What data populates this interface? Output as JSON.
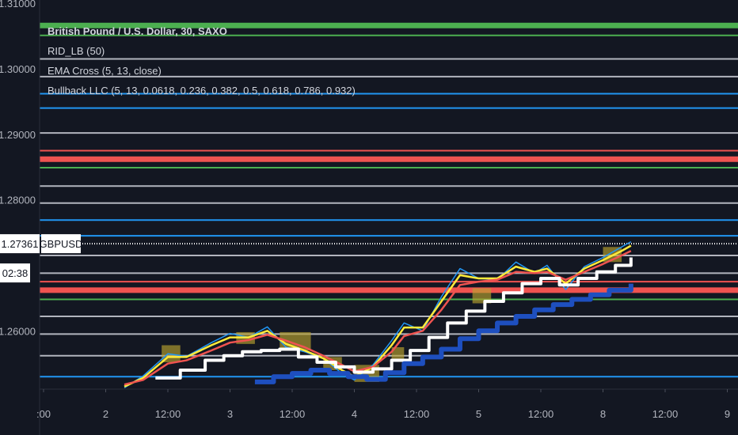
{
  "chart_data": {
    "type": "line",
    "symbol_label": "GBPUSD",
    "price_label": "1.27361",
    "countdown_label": "02:38",
    "legend": [
      "British Pound / U.S. Dollar, 30, SAXO",
      "RID_LB (50)",
      "EMA Cross (5, 13, close)",
      "Bullback LLC (5, 13, 0.0618, 0.236, 0.382, 0.5, 0.618, 0.786, 0.932)"
    ],
    "ylim": [
      1.2511,
      1.3105
    ],
    "y_ticks": [
      {
        "value": 1.31,
        "label": "1.31000"
      },
      {
        "value": 1.3,
        "label": "1.30000"
      },
      {
        "value": 1.29,
        "label": "1.29000"
      },
      {
        "value": 1.28,
        "label": "1.28000"
      },
      {
        "value": 1.26,
        "label": "1.26000"
      }
    ],
    "x_ticks": [
      ":00",
      "2",
      "12:00",
      "3",
      "12:00",
      "4",
      "12:00",
      "5",
      "12:00",
      "8",
      "12:00",
      "9"
    ],
    "x_tick_fraction": [
      0.0,
      0.1,
      0.2,
      0.3,
      0.4,
      0.5,
      0.6,
      0.7,
      0.8,
      0.9,
      1.0,
      1.1
    ],
    "horizontal_levels": [
      {
        "value": 1.3066,
        "color": "#4caf50",
        "bold": true
      },
      {
        "value": 1.3051,
        "color": "#4caf50",
        "bold": false
      },
      {
        "value": 1.3015,
        "color": "#b2b5be",
        "bold": false
      },
      {
        "value": 1.2988,
        "color": "#b2b5be",
        "bold": false
      },
      {
        "value": 1.2962,
        "color": "#2196f3",
        "bold": false
      },
      {
        "value": 1.294,
        "color": "#2196f3",
        "bold": false
      },
      {
        "value": 1.2902,
        "color": "#b2b5be",
        "bold": false
      },
      {
        "value": 1.2875,
        "color": "#ef5350",
        "bold": false
      },
      {
        "value": 1.2862,
        "color": "#ef5350",
        "bold": true
      },
      {
        "value": 1.2849,
        "color": "#4caf50",
        "bold": false
      },
      {
        "value": 1.2821,
        "color": "#b2b5be",
        "bold": false
      },
      {
        "value": 1.2795,
        "color": "#b2b5be",
        "bold": false
      },
      {
        "value": 1.2769,
        "color": "#2196f3",
        "bold": false
      },
      {
        "value": 1.2745,
        "color": "#2196f3",
        "bold": false
      },
      {
        "value": 1.2733,
        "color": "#ffffff",
        "bold": false,
        "dotted": true
      },
      {
        "value": 1.2715,
        "color": "#b2b5be",
        "bold": false
      },
      {
        "value": 1.2688,
        "color": "#b2b5be",
        "bold": false
      },
      {
        "value": 1.2675,
        "color": "#ef5350",
        "bold": false
      },
      {
        "value": 1.2662,
        "color": "#ef5350",
        "bold": true
      },
      {
        "value": 1.2648,
        "color": "#4caf50",
        "bold": false
      },
      {
        "value": 1.2622,
        "color": "#b2b5be",
        "bold": false
      },
      {
        "value": 1.2595,
        "color": "#b2b5be",
        "bold": false
      },
      {
        "value": 1.2562,
        "color": "#b2b5be",
        "bold": false
      },
      {
        "value": 1.253,
        "color": "#2196f3",
        "bold": false
      }
    ],
    "series": [
      {
        "color": "#2196f3",
        "points": [
          [
            0.13,
            1.2513
          ],
          [
            0.16,
            1.2531
          ],
          [
            0.2,
            1.2565
          ],
          [
            0.23,
            1.2561
          ],
          [
            0.27,
            1.2582
          ],
          [
            0.3,
            1.2596
          ],
          [
            0.33,
            1.259
          ],
          [
            0.36,
            1.2606
          ],
          [
            0.39,
            1.2575
          ],
          [
            0.42,
            1.2568
          ],
          [
            0.45,
            1.2558
          ],
          [
            0.48,
            1.2535
          ],
          [
            0.5,
            1.2525
          ],
          [
            0.53,
            1.2548
          ],
          [
            0.56,
            1.2585
          ],
          [
            0.58,
            1.2612
          ],
          [
            0.61,
            1.26
          ],
          [
            0.64,
            1.2652
          ],
          [
            0.67,
            1.2695
          ],
          [
            0.7,
            1.268
          ],
          [
            0.73,
            1.2678
          ],
          [
            0.76,
            1.2705
          ],
          [
            0.79,
            1.2688
          ],
          [
            0.81,
            1.27
          ],
          [
            0.84,
            1.2663
          ],
          [
            0.87,
            1.2698
          ],
          [
            0.9,
            1.2712
          ],
          [
            0.93,
            1.2728
          ],
          [
            0.945,
            1.2736
          ]
        ]
      },
      {
        "color": "#ffeb3b",
        "points": [
          [
            0.13,
            1.2515
          ],
          [
            0.16,
            1.2528
          ],
          [
            0.2,
            1.256
          ],
          [
            0.23,
            1.256
          ],
          [
            0.27,
            1.2578
          ],
          [
            0.3,
            1.259
          ],
          [
            0.33,
            1.259
          ],
          [
            0.36,
            1.26
          ],
          [
            0.39,
            1.258
          ],
          [
            0.42,
            1.257
          ],
          [
            0.45,
            1.2558
          ],
          [
            0.48,
            1.254
          ],
          [
            0.5,
            1.253
          ],
          [
            0.53,
            1.2545
          ],
          [
            0.56,
            1.2578
          ],
          [
            0.58,
            1.2605
          ],
          [
            0.61,
            1.2605
          ],
          [
            0.64,
            1.2645
          ],
          [
            0.67,
            1.2685
          ],
          [
            0.7,
            1.268
          ],
          [
            0.73,
            1.268
          ],
          [
            0.76,
            1.2698
          ],
          [
            0.79,
            1.269
          ],
          [
            0.81,
            1.2695
          ],
          [
            0.84,
            1.2672
          ],
          [
            0.87,
            1.2695
          ],
          [
            0.9,
            1.2708
          ],
          [
            0.93,
            1.2722
          ],
          [
            0.945,
            1.273
          ]
        ]
      },
      {
        "color": "#ef5350",
        "points": [
          [
            0.13,
            1.2518
          ],
          [
            0.16,
            1.2525
          ],
          [
            0.2,
            1.255
          ],
          [
            0.23,
            1.2555
          ],
          [
            0.27,
            1.257
          ],
          [
            0.3,
            1.2582
          ],
          [
            0.33,
            1.2586
          ],
          [
            0.36,
            1.2594
          ],
          [
            0.39,
            1.2585
          ],
          [
            0.42,
            1.2575
          ],
          [
            0.45,
            1.2562
          ],
          [
            0.48,
            1.2548
          ],
          [
            0.5,
            1.2538
          ],
          [
            0.53,
            1.2545
          ],
          [
            0.56,
            1.2568
          ],
          [
            0.58,
            1.2592
          ],
          [
            0.61,
            1.26
          ],
          [
            0.64,
            1.2632
          ],
          [
            0.67,
            1.267
          ],
          [
            0.7,
            1.2675
          ],
          [
            0.73,
            1.2678
          ],
          [
            0.76,
            1.269
          ],
          [
            0.79,
            1.2688
          ],
          [
            0.81,
            1.269
          ],
          [
            0.84,
            1.2678
          ],
          [
            0.87,
            1.269
          ],
          [
            0.9,
            1.2702
          ],
          [
            0.93,
            1.2715
          ],
          [
            0.945,
            1.2722
          ]
        ]
      },
      {
        "color": "#ffffff",
        "points": [
          [
            0.18,
            1.2528
          ],
          [
            0.22,
            1.254
          ],
          [
            0.26,
            1.2555
          ],
          [
            0.29,
            1.2562
          ],
          [
            0.32,
            1.2568
          ],
          [
            0.35,
            1.257
          ],
          [
            0.38,
            1.2572
          ],
          [
            0.41,
            1.256
          ],
          [
            0.44,
            1.2552
          ],
          [
            0.47,
            1.2545
          ],
          [
            0.5,
            1.2537
          ],
          [
            0.53,
            1.2542
          ],
          [
            0.56,
            1.2555
          ],
          [
            0.59,
            1.257
          ],
          [
            0.62,
            1.259
          ],
          [
            0.65,
            1.2612
          ],
          [
            0.68,
            1.263
          ],
          [
            0.71,
            1.2645
          ],
          [
            0.74,
            1.2658
          ],
          [
            0.77,
            1.2672
          ],
          [
            0.8,
            1.268
          ],
          [
            0.83,
            1.267
          ],
          [
            0.86,
            1.268
          ],
          [
            0.89,
            1.269
          ],
          [
            0.92,
            1.27
          ],
          [
            0.945,
            1.2712
          ]
        ]
      },
      {
        "color": "#1e4fbf",
        "points": [
          [
            0.34,
            1.2522
          ],
          [
            0.37,
            1.253
          ],
          [
            0.4,
            1.2535
          ],
          [
            0.43,
            1.254
          ],
          [
            0.46,
            1.2535
          ],
          [
            0.49,
            1.253
          ],
          [
            0.52,
            1.2526
          ],
          [
            0.55,
            1.2536
          ],
          [
            0.58,
            1.255
          ],
          [
            0.61,
            1.256
          ],
          [
            0.64,
            1.2572
          ],
          [
            0.67,
            1.2588
          ],
          [
            0.7,
            1.26
          ],
          [
            0.73,
            1.2612
          ],
          [
            0.76,
            1.2622
          ],
          [
            0.79,
            1.2632
          ],
          [
            0.82,
            1.264
          ],
          [
            0.85,
            1.2648
          ],
          [
            0.88,
            1.2655
          ],
          [
            0.91,
            1.2662
          ],
          [
            0.945,
            1.2672
          ]
        ]
      }
    ],
    "highlight_boxes": [
      {
        "x0": 0.19,
        "x1": 0.22,
        "y0": 1.2552,
        "y1": 1.2578
      },
      {
        "x0": 0.31,
        "x1": 0.34,
        "y0": 1.258,
        "y1": 1.2598
      },
      {
        "x0": 0.38,
        "x1": 0.43,
        "y0": 1.257,
        "y1": 1.2598
      },
      {
        "x0": 0.45,
        "x1": 0.48,
        "y0": 1.254,
        "y1": 1.256
      },
      {
        "x0": 0.5,
        "x1": 0.54,
        "y0": 1.2522,
        "y1": 1.2548
      },
      {
        "x0": 0.56,
        "x1": 0.58,
        "y0": 1.2555,
        "y1": 1.2575
      },
      {
        "x0": 0.69,
        "x1": 0.72,
        "y0": 1.2642,
        "y1": 1.2665
      },
      {
        "x0": 0.9,
        "x1": 0.93,
        "y0": 1.2705,
        "y1": 1.2728
      }
    ]
  }
}
